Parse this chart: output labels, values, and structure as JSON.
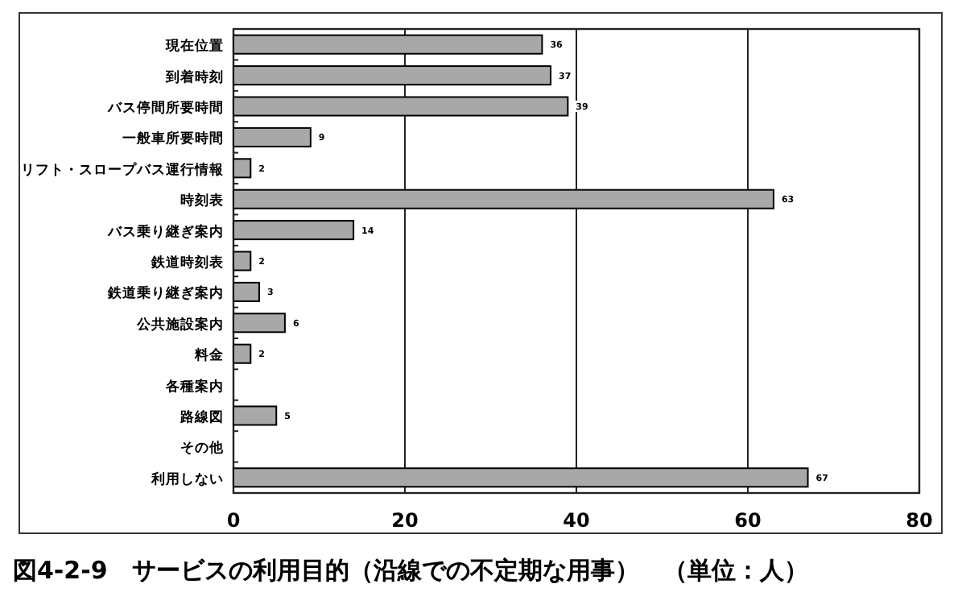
{
  "chart_data": {
    "type": "bar",
    "orientation": "horizontal",
    "title": "図4-2-9　サービスの利用目的（沿線での不定期な用事）　（単位：人）",
    "categories": [
      "現在位置",
      "到着時刻",
      "バス停間所要時間",
      "一般車所要時間",
      "リフト・スロープバス運行情報",
      "時刻表",
      "バス乗り継ぎ案内",
      "鉄道時刻表",
      "鉄道乗り継ぎ案内",
      "公共施設案内",
      "料金",
      "各種案内",
      "路線図",
      "その他",
      "利用しない"
    ],
    "values": [
      36,
      37,
      39,
      9,
      2,
      63,
      14,
      2,
      3,
      6,
      2,
      0,
      5,
      0,
      67
    ],
    "value_labels": [
      "36",
      "37",
      "39",
      "9",
      "2",
      "63",
      "14",
      "2",
      "3",
      "6",
      "2",
      null,
      "5",
      null,
      "67"
    ],
    "color": "#a8a8a8",
    "xlim": [
      0,
      80
    ],
    "xticks": [
      0,
      20,
      40,
      60,
      80
    ],
    "grid": "x"
  }
}
